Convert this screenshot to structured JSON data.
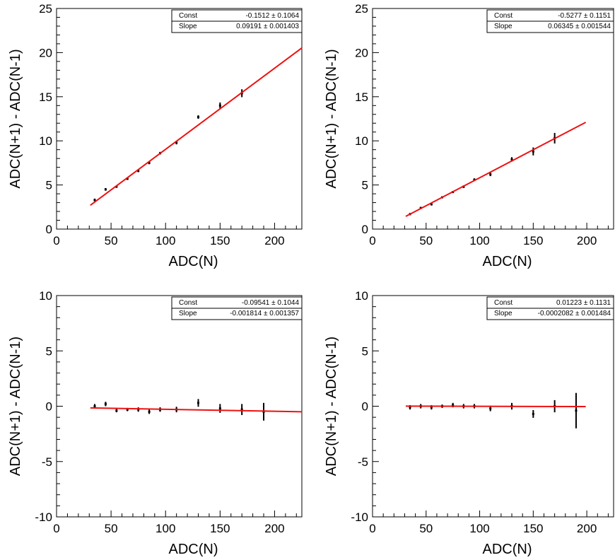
{
  "chart_data": [
    {
      "type": "scatter",
      "title": "",
      "xlabel": "ADC(N)",
      "ylabel": "ADC(N+1) - ADC(N-1)",
      "xlim": [
        0,
        225
      ],
      "ylim": [
        0,
        25
      ],
      "xticks": [
        0,
        50,
        100,
        150,
        200
      ],
      "yticks": [
        0,
        5,
        10,
        15,
        20,
        25
      ],
      "grid": false,
      "fit": {
        "x_range": [
          31,
          225
        ],
        "const": -0.1512,
        "slope": 0.09191
      },
      "stats": [
        {
          "label": "Const",
          "value": "-0.1512 ± 0.1064"
        },
        {
          "label": "Slope",
          "value": "0.09191 ± 0.001403"
        }
      ],
      "series": [
        {
          "x": [
            35,
            45,
            55,
            65,
            75,
            85,
            95,
            110,
            130,
            150,
            170
          ],
          "y": [
            3.3,
            4.5,
            4.8,
            5.7,
            6.6,
            7.5,
            8.6,
            9.8,
            12.7,
            14.0,
            15.4
          ],
          "err": [
            0.15,
            0.15,
            0.12,
            0.12,
            0.15,
            0.15,
            0.15,
            0.2,
            0.2,
            0.35,
            0.45
          ]
        }
      ]
    },
    {
      "type": "scatter",
      "title": "",
      "xlabel": "ADC(N)",
      "ylabel": "ADC(N+1) - ADC(N-1)",
      "xlim": [
        0,
        225
      ],
      "ylim": [
        0,
        25
      ],
      "xticks": [
        0,
        50,
        100,
        150,
        200
      ],
      "yticks": [
        0,
        5,
        10,
        15,
        20,
        25
      ],
      "grid": false,
      "fit": {
        "x_range": [
          31,
          199
        ],
        "const": -0.5277,
        "slope": 0.06345
      },
      "stats": [
        {
          "label": "Const",
          "value": "-0.5277 ± 0.1151"
        },
        {
          "label": "Slope",
          "value": "0.06345 ± 0.001544"
        }
      ],
      "series": [
        {
          "x": [
            35,
            45,
            55,
            65,
            75,
            85,
            95,
            110,
            130,
            150,
            170
          ],
          "y": [
            1.7,
            2.4,
            2.8,
            3.6,
            4.2,
            4.8,
            5.6,
            6.2,
            7.9,
            8.8,
            10.3
          ],
          "err": [
            0.12,
            0.12,
            0.12,
            0.1,
            0.1,
            0.15,
            0.15,
            0.2,
            0.25,
            0.45,
            0.6
          ]
        }
      ]
    },
    {
      "type": "scatter",
      "title": "",
      "xlabel": "ADC(N)",
      "ylabel": "ADC(N+1) - ADC(N-1)",
      "xlim": [
        0,
        225
      ],
      "ylim": [
        -10,
        10
      ],
      "xticks": [
        0,
        50,
        100,
        150,
        200
      ],
      "yticks": [
        -10,
        -5,
        0,
        5,
        10
      ],
      "grid": false,
      "fit": {
        "x_range": [
          31,
          225
        ],
        "const": -0.09541,
        "slope": -0.001814
      },
      "stats": [
        {
          "label": "Const",
          "value": "-0.09541 ± 0.1044"
        },
        {
          "label": "Slope",
          "value": "-0.001814 ± 0.001357"
        }
      ],
      "series": [
        {
          "x": [
            35,
            45,
            55,
            65,
            75,
            85,
            95,
            110,
            130,
            150,
            170,
            190
          ],
          "y": [
            0.0,
            0.2,
            -0.4,
            -0.3,
            -0.3,
            -0.5,
            -0.3,
            -0.3,
            0.3,
            -0.2,
            -0.3,
            -0.5
          ],
          "err": [
            0.2,
            0.2,
            0.15,
            0.15,
            0.2,
            0.2,
            0.2,
            0.25,
            0.35,
            0.4,
            0.5,
            0.8
          ]
        }
      ]
    },
    {
      "type": "scatter",
      "title": "",
      "xlabel": "ADC(N)",
      "ylabel": "ADC(N+1) - ADC(N-1)",
      "xlim": [
        0,
        225
      ],
      "ylim": [
        -10,
        10
      ],
      "xticks": [
        0,
        50,
        100,
        150,
        200
      ],
      "yticks": [
        -10,
        -5,
        0,
        5,
        10
      ],
      "grid": false,
      "fit": {
        "x_range": [
          31,
          199
        ],
        "const": 0.01223,
        "slope": -0.0002082
      },
      "stats": [
        {
          "label": "Const",
          "value": "0.01223 ± 0.1131"
        },
        {
          "label": "Slope",
          "value": "-0.0002082 ± 0.001484"
        }
      ],
      "series": [
        {
          "x": [
            35,
            45,
            55,
            65,
            75,
            85,
            95,
            110,
            130,
            150,
            170,
            190
          ],
          "y": [
            -0.1,
            0.0,
            -0.1,
            0.0,
            0.1,
            0.0,
            0.0,
            -0.2,
            0.0,
            -0.7,
            0.0,
            -0.4
          ],
          "err": [
            0.2,
            0.2,
            0.2,
            0.15,
            0.2,
            0.2,
            0.2,
            0.25,
            0.3,
            0.35,
            0.55,
            1.6
          ]
        }
      ]
    }
  ]
}
